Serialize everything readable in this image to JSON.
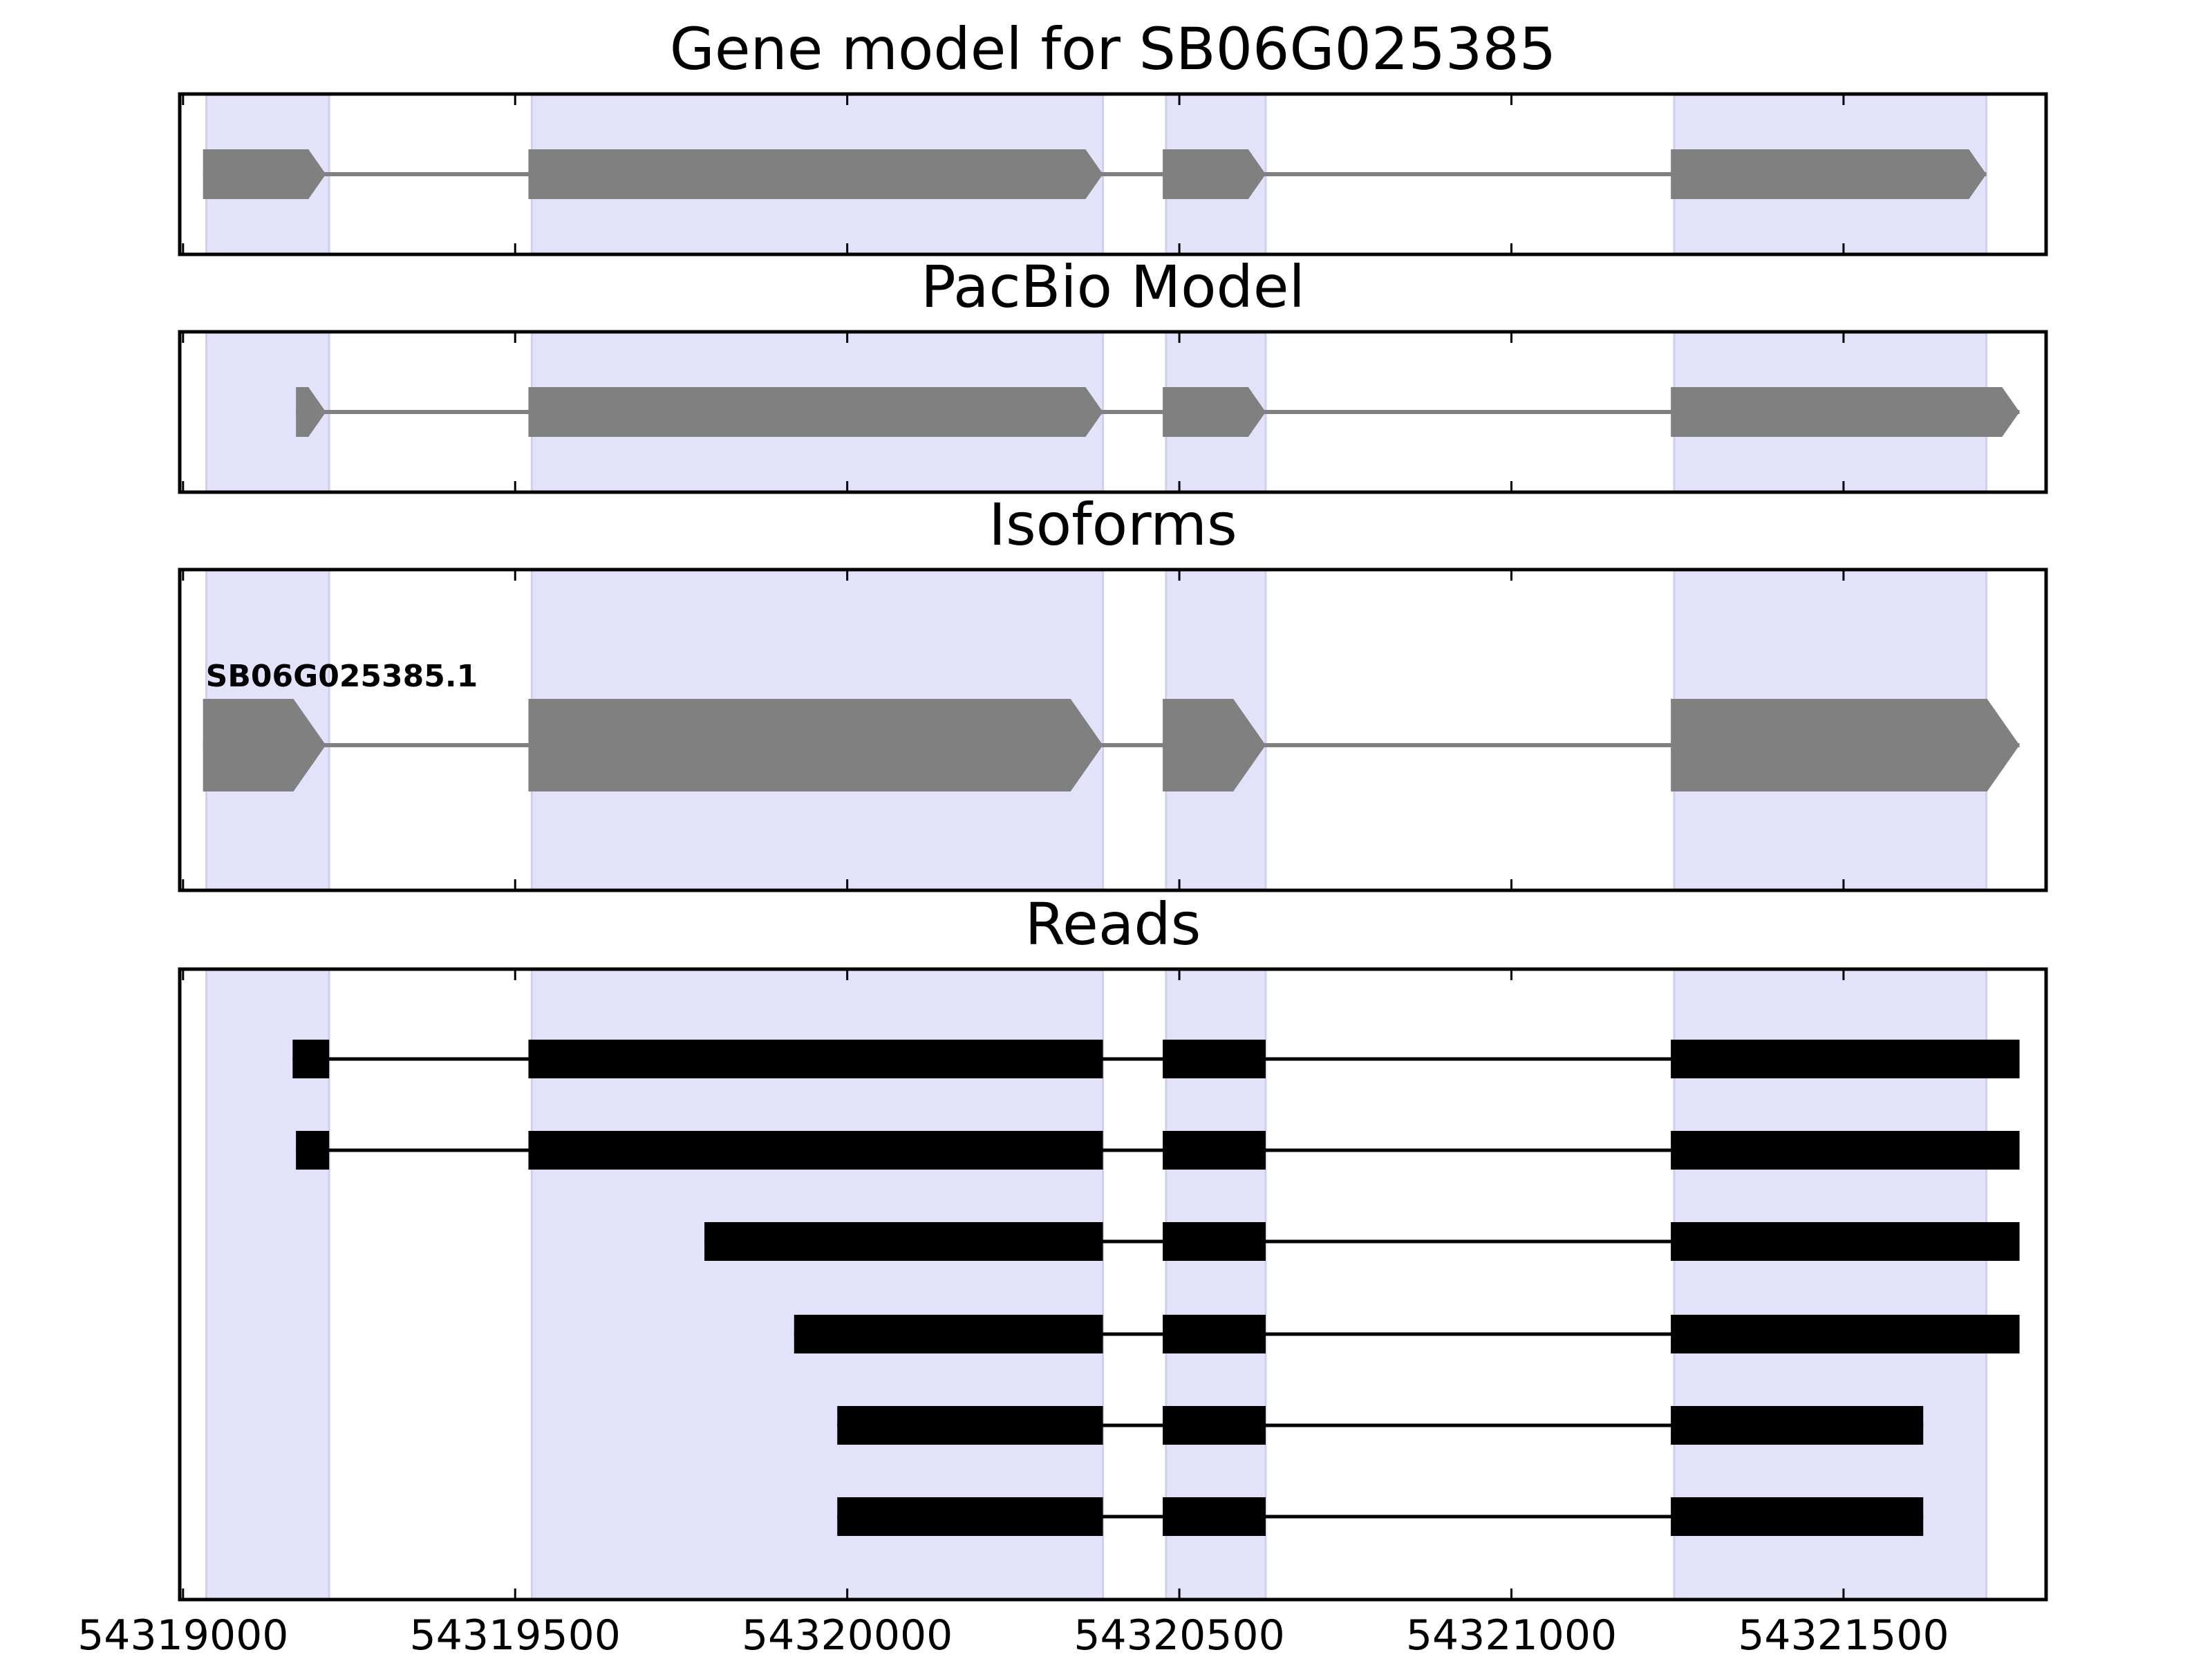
{
  "chart_data": [
    {
      "type": "gene-track",
      "title": "Gene model for SB06G025385",
      "xlim": [
        54318995,
        54321805
      ],
      "show_xticklabels": false,
      "style": "arrow",
      "color": "#808080",
      "highlight_color": "#e2e2fb",
      "features": [
        {
          "name": "",
          "exons": [
            [
              54319030,
              54319215
            ],
            [
              54319520,
              54320385
            ],
            [
              54320475,
              54320630
            ],
            [
              54321240,
              54321715
            ]
          ]
        }
      ]
    },
    {
      "type": "gene-track",
      "title": "PacBio Model",
      "xlim": [
        54318995,
        54321805
      ],
      "show_xticklabels": false,
      "style": "arrow",
      "color": "#808080",
      "highlight_color": "#e2e2fb",
      "features": [
        {
          "name": "",
          "exons": [
            [
              54319170,
              54319215
            ],
            [
              54319520,
              54320385
            ],
            [
              54320475,
              54320630
            ],
            [
              54321240,
              54321765
            ]
          ]
        }
      ]
    },
    {
      "type": "gene-track",
      "title": "Isoforms",
      "xlim": [
        54318995,
        54321805
      ],
      "show_xticklabels": false,
      "style": "arrow-large",
      "color": "#808080",
      "highlight_color": "#e2e2fb",
      "features": [
        {
          "name": "SB06G025385.1",
          "exons": [
            [
              54319030,
              54319215
            ],
            [
              54319520,
              54320385
            ],
            [
              54320475,
              54320630
            ],
            [
              54321240,
              54321765
            ]
          ]
        }
      ]
    },
    {
      "type": "gene-track",
      "title": "Reads",
      "xlim": [
        54318995,
        54321805
      ],
      "show_xticklabels": true,
      "xticks": [
        54319000,
        54319500,
        54320000,
        54320500,
        54321000,
        54321500
      ],
      "style": "box",
      "color": "#000000",
      "highlight_color": "#e2e2fb",
      "features": [
        {
          "name": "",
          "exons": [
            [
              54319165,
              54319220
            ],
            [
              54319520,
              54320385
            ],
            [
              54320475,
              54320630
            ],
            [
              54321240,
              54321765
            ]
          ]
        },
        {
          "name": "",
          "exons": [
            [
              54319170,
              54319220
            ],
            [
              54319520,
              54320385
            ],
            [
              54320475,
              54320630
            ],
            [
              54321240,
              54321765
            ]
          ]
        },
        {
          "name": "",
          "exons": [
            [
              54319785,
              54320385
            ],
            [
              54320475,
              54320630
            ],
            [
              54321240,
              54321765
            ]
          ]
        },
        {
          "name": "",
          "exons": [
            [
              54319920,
              54320385
            ],
            [
              54320475,
              54320630
            ],
            [
              54321240,
              54321765
            ]
          ]
        },
        {
          "name": "",
          "exons": [
            [
              54319985,
              54320385
            ],
            [
              54320475,
              54320630
            ],
            [
              54321240,
              54321620
            ]
          ]
        },
        {
          "name": "",
          "exons": [
            [
              54319985,
              54320385
            ],
            [
              54320475,
              54320630
            ],
            [
              54321240,
              54321620
            ]
          ]
        }
      ]
    }
  ],
  "highlight_regions": [
    [
      54319035,
      54319220
    ],
    [
      54319525,
      54320385
    ],
    [
      54320480,
      54320630
    ],
    [
      54321245,
      54321715
    ]
  ]
}
